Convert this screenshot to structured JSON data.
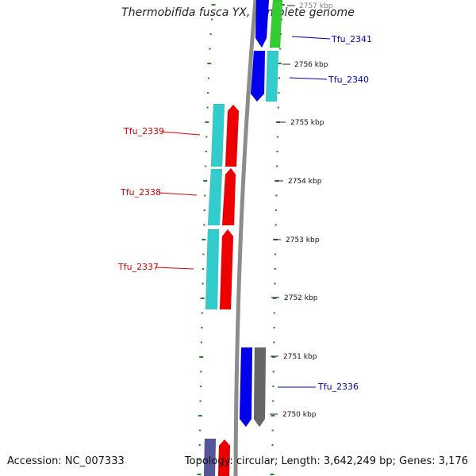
{
  "title": "Thermobifida fusca YX, complete genome",
  "footer": {
    "accession": "Accession: NC_007333",
    "summary": "Topology: circular; Length: 3,642,249 bp; Genes: 3,176"
  },
  "scale": {
    "unit": "kbp",
    "ticks": [
      "2757 kbp",
      "2756 kbp",
      "2755 kbp",
      "2754 kbp",
      "2753 kbp",
      "2752 kbp",
      "2751 kbp",
      "2750 kbp"
    ]
  },
  "colors": {
    "backbone": "#8c8c8c",
    "forward_label": "#0000cc",
    "reverse_label": "#dd0000",
    "cds": "#0000ee",
    "gene": "#33cccc",
    "rna_red": "#ee0000",
    "green": "#33cc33",
    "gray": "#666666",
    "purple": "#555599",
    "guide_dots": "#228b22"
  },
  "genes": [
    {
      "id": "Tfu_2341",
      "strand": "forward",
      "start_kbp": 2756.55,
      "end_kbp": 2757.3
    },
    {
      "id": "Tfu_2340",
      "strand": "forward",
      "start_kbp": 2755.7,
      "end_kbp": 2756.55
    },
    {
      "id": "Tfu_2339",
      "strand": "reverse",
      "start_kbp": 2754.85,
      "end_kbp": 2755.65
    },
    {
      "id": "Tfu_2338",
      "strand": "reverse",
      "start_kbp": 2753.95,
      "end_kbp": 2754.85
    },
    {
      "id": "Tfu_2337",
      "strand": "reverse",
      "start_kbp": 2751.8,
      "end_kbp": 2753.95
    },
    {
      "id": "Tfu_2336",
      "strand": "forward",
      "start_kbp": 2750.2,
      "end_kbp": 2751.15
    }
  ]
}
